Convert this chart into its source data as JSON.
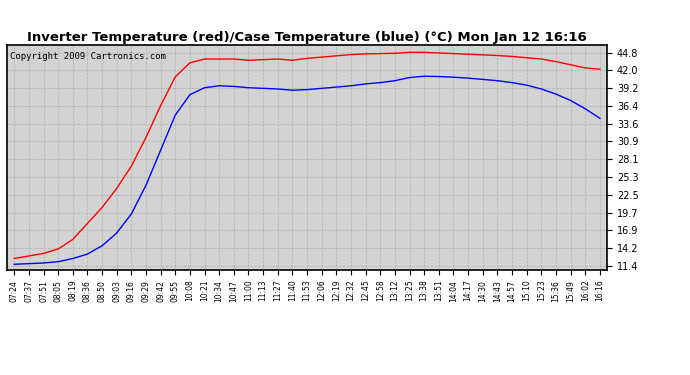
{
  "title": "Inverter Temperature (red)/Case Temperature (blue) (°C) Mon Jan 12 16:16",
  "copyright": "Copyright 2009 Cartronics.com",
  "yticks": [
    11.4,
    14.2,
    16.9,
    19.7,
    22.5,
    25.3,
    28.1,
    30.9,
    33.6,
    36.4,
    39.2,
    42.0,
    44.8
  ],
  "ylim": [
    10.7,
    46.0
  ],
  "fig_bg_color": "#ffffff",
  "plot_bg_color": "#d3d3d3",
  "grid_color": "#b0b0b0",
  "red_color": "#ff0000",
  "blue_color": "#0000ff",
  "xtick_labels": [
    "07:24",
    "07:37",
    "07:51",
    "08:05",
    "08:19",
    "08:36",
    "08:50",
    "09:03",
    "09:16",
    "09:29",
    "09:42",
    "09:55",
    "10:08",
    "10:21",
    "10:34",
    "10:47",
    "11:00",
    "11:13",
    "11:27",
    "11:40",
    "11:53",
    "12:06",
    "12:19",
    "12:32",
    "12:45",
    "12:58",
    "13:12",
    "13:25",
    "13:38",
    "13:51",
    "14:04",
    "14:17",
    "14:30",
    "14:43",
    "14:57",
    "15:10",
    "15:23",
    "15:36",
    "15:49",
    "16:02",
    "16:16"
  ],
  "red_data": [
    12.5,
    12.9,
    13.3,
    14.0,
    15.5,
    18.0,
    20.5,
    23.5,
    27.0,
    31.5,
    36.5,
    41.0,
    43.2,
    43.8,
    43.8,
    43.8,
    43.6,
    43.7,
    43.8,
    43.6,
    43.9,
    44.1,
    44.3,
    44.5,
    44.6,
    44.65,
    44.7,
    44.85,
    44.85,
    44.75,
    44.65,
    44.55,
    44.45,
    44.35,
    44.2,
    44.0,
    43.8,
    43.4,
    42.9,
    42.4,
    42.2
  ],
  "blue_data": [
    11.6,
    11.7,
    11.8,
    12.0,
    12.5,
    13.2,
    14.5,
    16.5,
    19.5,
    24.0,
    29.5,
    35.0,
    38.2,
    39.3,
    39.6,
    39.5,
    39.3,
    39.2,
    39.1,
    38.9,
    39.0,
    39.2,
    39.4,
    39.6,
    39.9,
    40.1,
    40.4,
    40.9,
    41.1,
    41.05,
    40.95,
    40.8,
    40.6,
    40.4,
    40.1,
    39.7,
    39.1,
    38.3,
    37.3,
    36.0,
    34.5
  ]
}
